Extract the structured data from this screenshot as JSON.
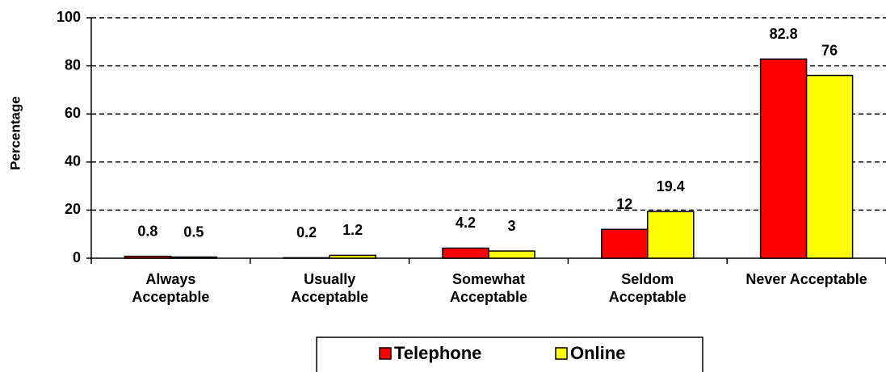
{
  "chart_data": {
    "type": "bar",
    "y_label": "Percentage",
    "categories": [
      "Always\nAcceptable",
      "Usually\nAcceptable",
      "Somewhat\nAcceptable",
      "Seldom\nAcceptable",
      "Never Acceptable"
    ],
    "series": [
      {
        "name": "Telephone",
        "color": "#ff0000",
        "values": [
          0.8,
          0.2,
          4.2,
          12,
          82.8
        ]
      },
      {
        "name": "Online",
        "color": "#ffff00",
        "values": [
          0.5,
          1.2,
          3,
          19.4,
          76
        ]
      }
    ],
    "ylim": [
      0,
      100
    ],
    "yticks": [
      0,
      20,
      40,
      60,
      80,
      100
    ],
    "grid": true,
    "legend": "bottom"
  }
}
